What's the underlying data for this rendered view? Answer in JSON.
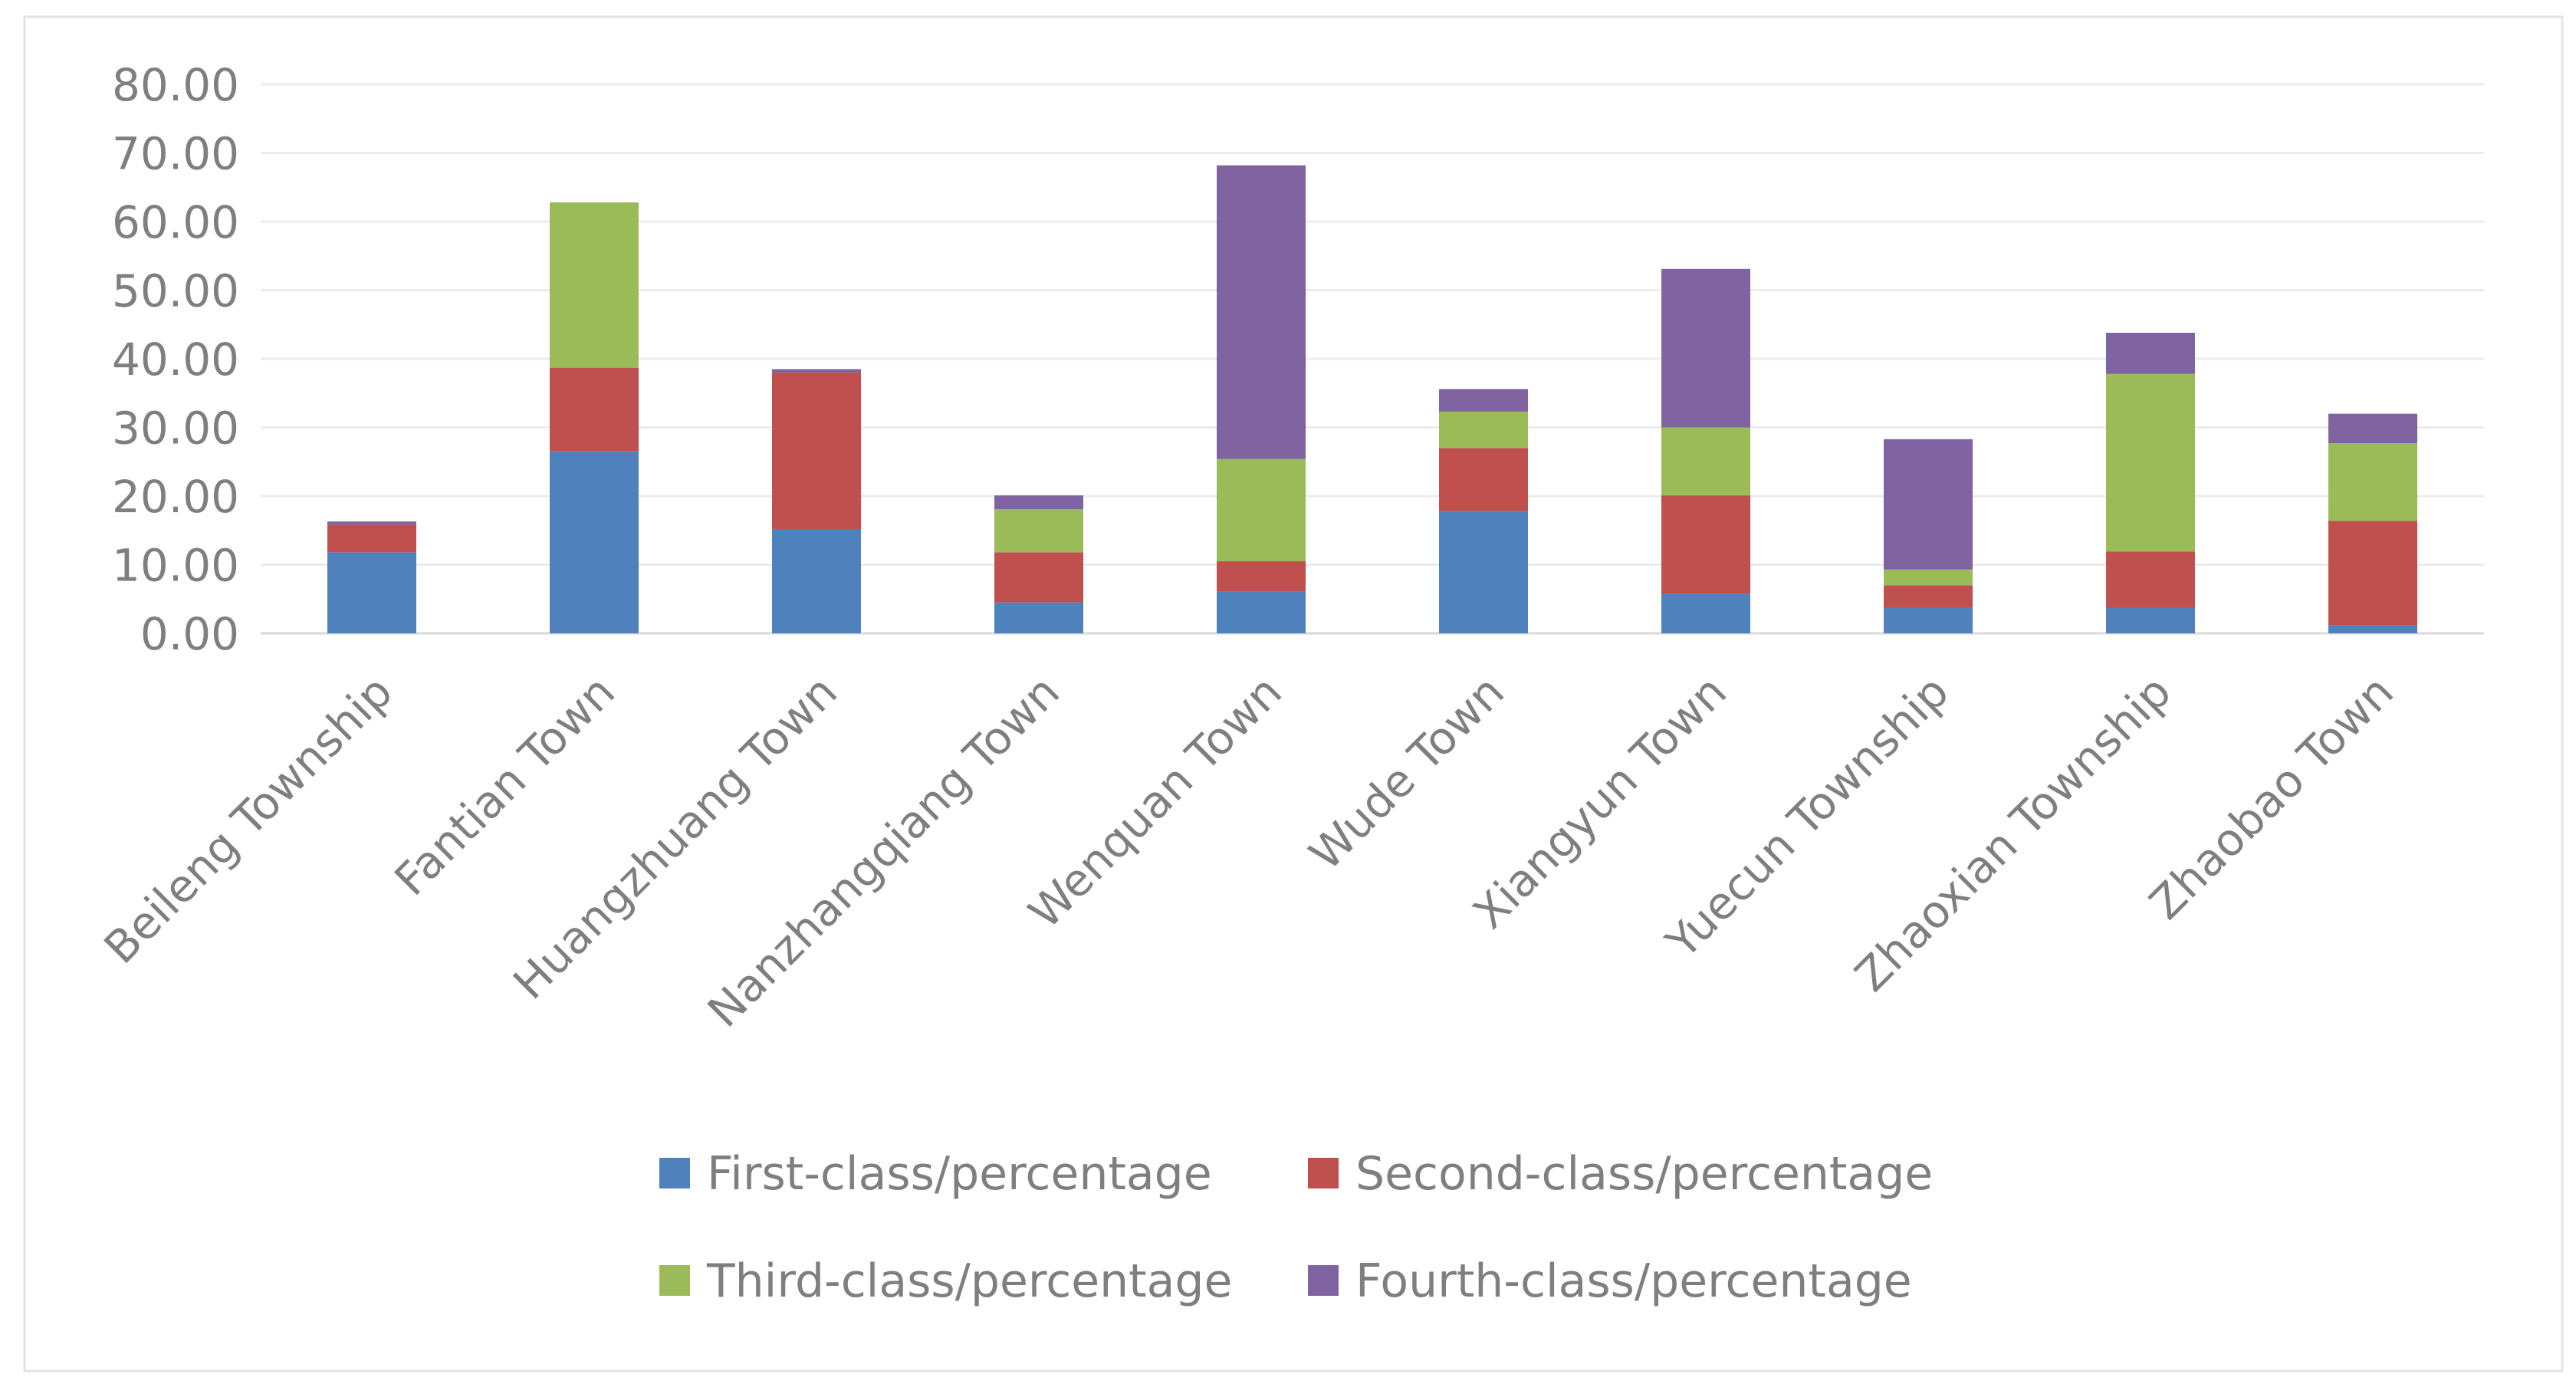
{
  "chart_data": {
    "type": "bar",
    "stacked": true,
    "title": "",
    "xlabel": "",
    "ylabel": "",
    "ylim": [
      0,
      80
    ],
    "y_ticks": [
      "0.00",
      "10.00",
      "20.00",
      "30.00",
      "40.00",
      "50.00",
      "60.00",
      "70.00",
      "80.00"
    ],
    "grid": true,
    "legend_position": "bottom",
    "categories": [
      "Beileng Township",
      "Fantian Town",
      "Huangzhuang Town",
      "Nanzhangqiang Town",
      "Wenquan Town",
      "Wude Town",
      "Xiangyun Town",
      "Yuecun Township",
      "Zhaoxian Township",
      "Zhaobao Town"
    ],
    "series": [
      {
        "name": "First-class/percentage",
        "color": "#4f81bd",
        "values": [
          11.8,
          26.5,
          15.2,
          4.5,
          6.1,
          17.8,
          5.8,
          3.8,
          3.8,
          1.2
        ]
      },
      {
        "name": "Second-class/percentage",
        "color": "#c0504d",
        "values": [
          4.0,
          12.2,
          22.8,
          7.3,
          4.4,
          9.2,
          14.3,
          3.2,
          8.1,
          15.2
        ]
      },
      {
        "name": "Third-class/percentage",
        "color": "#9bbb59",
        "values": [
          0.0,
          24.1,
          0.0,
          6.3,
          14.9,
          5.3,
          9.9,
          2.3,
          25.9,
          11.3
        ]
      },
      {
        "name": "Fourth-class/percentage",
        "color": "#8064a2",
        "values": [
          0.5,
          0.0,
          0.5,
          2.0,
          42.8,
          3.3,
          23.1,
          19.0,
          6.0,
          4.3
        ]
      }
    ]
  },
  "colors": {
    "grid": "#ececec",
    "axis": "#d9d9d9",
    "text": "#7f7f7f",
    "frame": "#e3e3e3"
  }
}
